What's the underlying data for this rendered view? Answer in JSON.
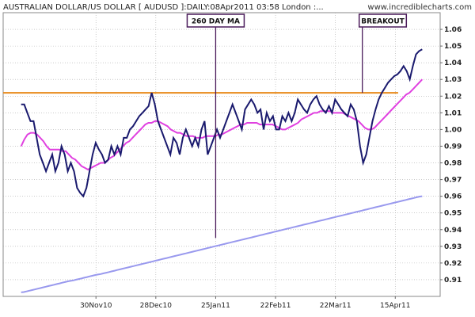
{
  "header": {
    "title": "AUSTRALIAN DOLLAR/US DOLLAR [ AUDUSD ]:DAILY:08Apr2011 03:58 London :...",
    "source": "www.incrediblecharts.com"
  },
  "chart_data": {
    "type": "line",
    "ylim": [
      0.9,
      1.07
    ],
    "y_ticks": [
      0.91,
      0.92,
      0.93,
      0.94,
      0.95,
      0.96,
      0.97,
      0.98,
      0.99,
      1.0,
      1.01,
      1.02,
      1.03,
      1.04,
      1.05,
      1.06
    ],
    "y_tick_labels": [
      "0.91",
      "0.92",
      "0.93",
      "0.94",
      "0.95",
      "0.96",
      "0.97",
      "0.98",
      "0.99",
      "1.00",
      "1.01",
      "1.02",
      "1.03",
      "1.04",
      "1.05",
      "1.06"
    ],
    "x_tick_labels": [
      "30Nov10",
      "28Dec10",
      "25Jan11",
      "22Feb11",
      "22Mar11",
      "15Apr11"
    ],
    "xlim": [
      0,
      146
    ],
    "x_tick_positions": [
      31,
      51,
      71,
      91,
      111,
      131
    ],
    "grid": true,
    "colors": {
      "price": "#1a1a6e",
      "ma_short": "#e040e0",
      "ma_260": "#9999ee",
      "resistance": "#e88a1a",
      "annotation": "#4a1a5a"
    },
    "series": [
      {
        "values": [
          1.015,
          1.015,
          1.01,
          1.005,
          1.005,
          0.995,
          0.985,
          0.98,
          0.975,
          0.98,
          0.985,
          0.975,
          0.98,
          0.99,
          0.985,
          0.975,
          0.98,
          0.975,
          0.965,
          0.962,
          0.96,
          0.965,
          0.975,
          0.985,
          0.992,
          0.988,
          0.985,
          0.98,
          0.982,
          0.99,
          0.985,
          0.99,
          0.985,
          0.995,
          0.995,
          1.0,
          1.002,
          1.005,
          1.008,
          1.01,
          1.012,
          1.014,
          1.022,
          1.015,
          1.005,
          1.0,
          0.995,
          0.99,
          0.985,
          0.995,
          0.992,
          0.985,
          0.995,
          1.0,
          0.995,
          0.99,
          0.995,
          0.99,
          1.0,
          1.005,
          0.985,
          0.99,
          0.995,
          1.0,
          0.995,
          1.0,
          1.005,
          1.01,
          1.015,
          1.01,
          1.005,
          1.0,
          1.012,
          1.015,
          1.018,
          1.015,
          1.01,
          1.012,
          1.0,
          1.01,
          1.005,
          1.008,
          1.0,
          1.0,
          1.008,
          1.005,
          1.01,
          1.005,
          1.01,
          1.018,
          1.015,
          1.012,
          1.01,
          1.015,
          1.018,
          1.02,
          1.015,
          1.012,
          1.01,
          1.014,
          1.01,
          1.018,
          1.015,
          1.012,
          1.01,
          1.008,
          1.015,
          1.012,
          1.005,
          0.99,
          0.98,
          0.985,
          0.995,
          1.005,
          1.012,
          1.018,
          1.022,
          1.025,
          1.028,
          1.03,
          1.032,
          1.033,
          1.035,
          1.038,
          1.035,
          1.03,
          1.038,
          1.045,
          1.047,
          1.048
        ]
      },
      {
        "values": [
          0.99,
          0.994,
          0.997,
          0.998,
          0.998,
          0.997,
          0.995,
          0.993,
          0.99,
          0.988,
          0.988,
          0.988,
          0.988,
          0.987,
          0.987,
          0.985,
          0.983,
          0.982,
          0.98,
          0.978,
          0.977,
          0.976,
          0.977,
          0.978,
          0.979,
          0.98,
          0.98,
          0.981,
          0.983,
          0.984,
          0.986,
          0.988,
          0.99,
          0.992,
          0.993,
          0.995,
          0.997,
          0.999,
          1.001,
          1.003,
          1.004,
          1.004,
          1.005,
          1.005,
          1.004,
          1.003,
          1.002,
          1.0,
          0.999,
          0.998,
          0.998,
          0.997,
          0.996,
          0.996,
          0.996,
          0.995,
          0.995,
          0.995,
          0.996,
          0.996,
          0.996,
          0.996,
          0.997,
          0.997,
          0.998,
          0.999,
          1.0,
          1.001,
          1.002,
          1.003,
          1.003,
          1.004,
          1.004,
          1.004,
          1.004,
          1.003,
          1.003,
          1.003,
          1.003,
          1.003,
          1.002,
          1.001,
          1.0,
          1.0,
          1.001,
          1.002,
          1.003,
          1.004,
          1.006,
          1.007,
          1.008,
          1.009,
          1.01,
          1.01,
          1.011,
          1.011,
          1.011,
          1.011,
          1.01,
          1.01,
          1.01,
          1.01,
          1.009,
          1.008,
          1.007,
          1.006,
          1.005,
          1.003,
          1.001,
          1.0,
          1.0,
          1.001,
          1.003,
          1.005,
          1.007,
          1.009,
          1.011,
          1.013,
          1.015,
          1.017,
          1.019,
          1.021,
          1.022,
          1.024,
          1.026,
          1.028,
          1.03
        ]
      },
      {
        "values": [
          0.9024,
          0.9026,
          0.903,
          0.9034,
          0.9038,
          0.9042,
          0.9046,
          0.905,
          0.9054,
          0.9058,
          0.9062,
          0.9066,
          0.907,
          0.9074,
          0.9078,
          0.9082,
          0.9086,
          0.909,
          0.9093,
          0.9096,
          0.91,
          0.9104,
          0.9108,
          0.9112,
          0.9116,
          0.912,
          0.9124,
          0.9128,
          0.9131,
          0.9134,
          0.9138,
          0.9142,
          0.9146,
          0.915,
          0.9154,
          0.9158,
          0.9162,
          0.9166,
          0.917,
          0.9174,
          0.9178,
          0.9182,
          0.9186,
          0.919,
          0.9194,
          0.9198,
          0.9202,
          0.9206,
          0.921,
          0.9214,
          0.9218,
          0.9222,
          0.9226,
          0.923,
          0.9234,
          0.9238,
          0.9242,
          0.9246,
          0.925,
          0.9254,
          0.9258,
          0.9262,
          0.9266,
          0.927,
          0.9274,
          0.9278,
          0.9282,
          0.9286,
          0.929,
          0.9294,
          0.9298,
          0.9302,
          0.9306,
          0.931,
          0.9314,
          0.9318,
          0.9322,
          0.9326,
          0.933,
          0.9334,
          0.9338,
          0.9342,
          0.9346,
          0.935,
          0.9354,
          0.9358,
          0.9362,
          0.9366,
          0.937,
          0.9374,
          0.9378,
          0.9382,
          0.9386,
          0.939,
          0.9394,
          0.9398,
          0.9402,
          0.9406,
          0.941,
          0.9414,
          0.9418,
          0.9422,
          0.9426,
          0.943,
          0.9434,
          0.9438,
          0.9442,
          0.9446,
          0.945,
          0.9454,
          0.9458,
          0.9462,
          0.9466,
          0.947,
          0.9474,
          0.9478,
          0.9482,
          0.9486,
          0.949,
          0.9494,
          0.9498,
          0.9502,
          0.9506,
          0.951,
          0.9514,
          0.9518,
          0.9522,
          0.9526,
          0.953,
          0.9534,
          0.9538,
          0.9542,
          0.9546,
          0.955,
          0.9554,
          0.9558,
          0.9562,
          0.9566,
          0.957,
          0.9574,
          0.9578,
          0.9582,
          0.9586,
          0.959,
          0.9594,
          0.9598,
          0.96
        ]
      }
    ],
    "resistance_level": 1.022,
    "annotations": [
      {
        "label": "260 DAY MA",
        "x": 71,
        "y": 0.935
      },
      {
        "label": "BREAKOUT",
        "x": 120,
        "y": 1.022
      }
    ]
  }
}
